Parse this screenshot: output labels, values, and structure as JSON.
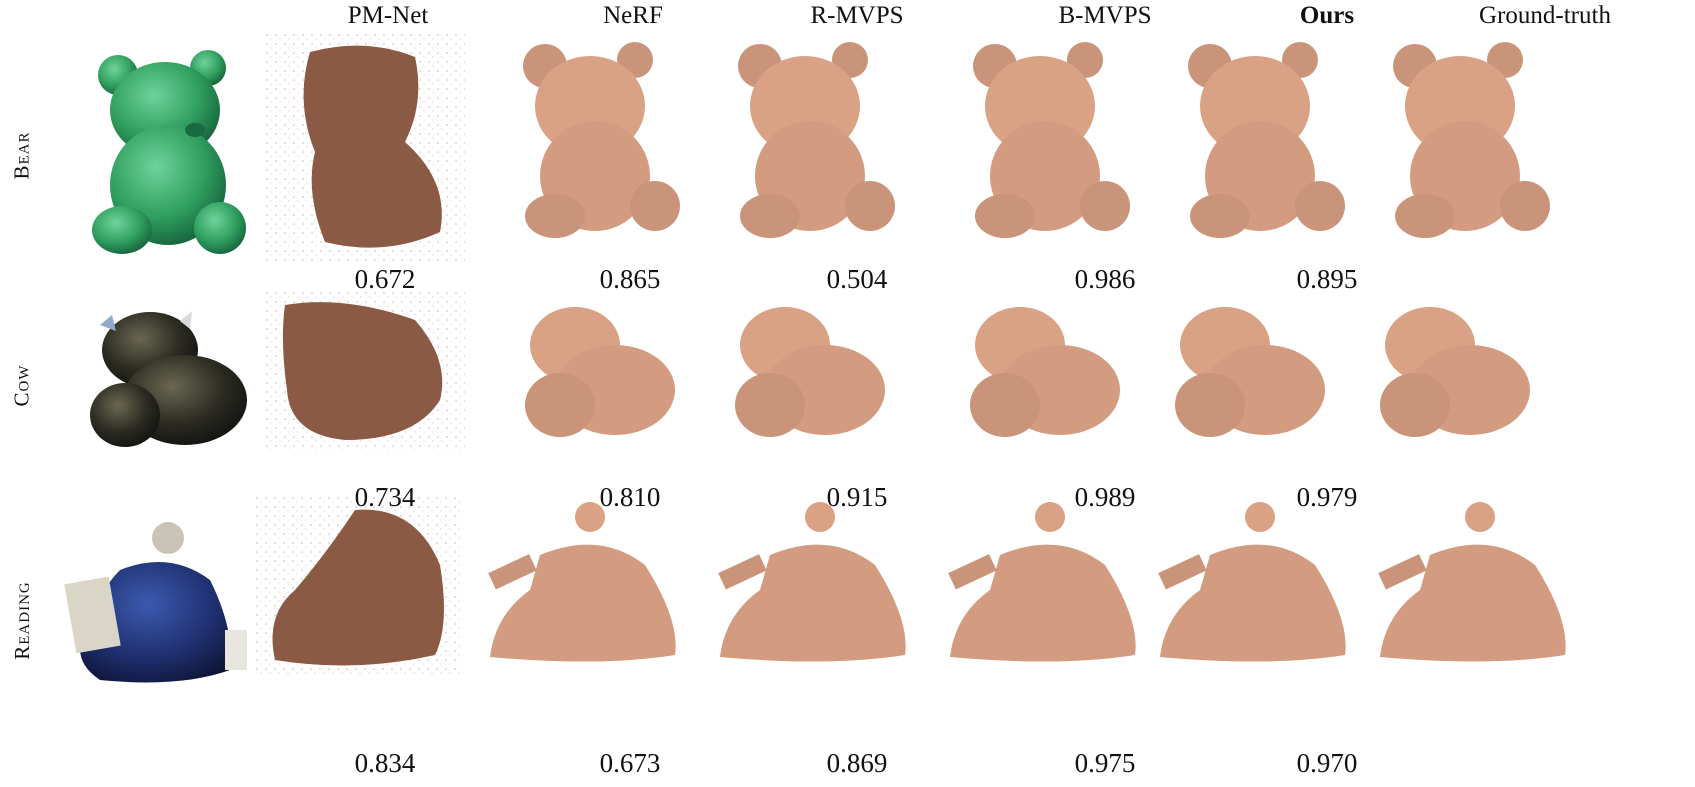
{
  "figure": {
    "columns": [
      {
        "id": "input",
        "label": ""
      },
      {
        "id": "pmnet",
        "label": "PM-Net",
        "bold": false
      },
      {
        "id": "nerf",
        "label": "NeRF",
        "bold": false
      },
      {
        "id": "rmvps",
        "label": "R-MVPS",
        "bold": false
      },
      {
        "id": "bmvps",
        "label": "B-MVPS",
        "bold": false
      },
      {
        "id": "ours",
        "label": "Ours",
        "bold": true
      },
      {
        "id": "gt",
        "label": "Ground-truth",
        "bold": false
      }
    ],
    "rows": [
      {
        "label": "Bear",
        "object_color": "#2f9e5e",
        "scores": [
          "0.672",
          "0.865",
          "0.504",
          "0.986",
          "0.895"
        ]
      },
      {
        "label": "Cow",
        "object_color": "#2b2a22",
        "scores": [
          "0.734",
          "0.810",
          "0.915",
          "0.989",
          "0.979"
        ]
      },
      {
        "label": "Reading",
        "object_color": "#1f2f6e",
        "scores": [
          "0.834",
          "0.673",
          "0.869",
          "0.975",
          "0.970"
        ]
      }
    ],
    "colors": {
      "mesh": "#d9a285",
      "mesh_shadow": "#b47f66",
      "pointcloud": "#8a5a45"
    }
  }
}
